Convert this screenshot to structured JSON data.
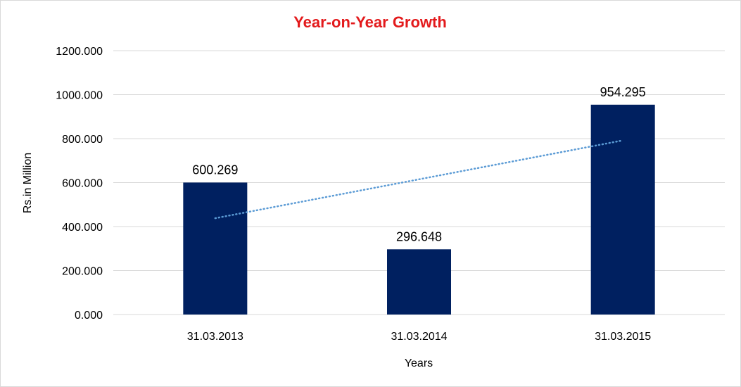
{
  "chart_data": {
    "type": "bar",
    "title": "Year-on-Year Growth",
    "xlabel": "Years",
    "ylabel": "Rs.in Million",
    "categories": [
      "31.03.2013",
      "31.03.2014",
      "31.03.2015"
    ],
    "series": [
      {
        "values": [
          600.269,
          296.648,
          954.295
        ]
      }
    ],
    "data_labels": [
      "600.269",
      "296.648",
      "954.295"
    ],
    "yticks": [
      0,
      200,
      400,
      600,
      800,
      1000,
      1200
    ],
    "ytick_labels": [
      "0.000",
      "200.000",
      "400.000",
      "600.000",
      "800.000",
      "1000.000",
      "1200.000"
    ],
    "ylim": [
      0,
      1200
    ],
    "grid": true,
    "legend": "none",
    "trendline": {
      "type": "linear",
      "style": "dotted",
      "start": 438,
      "end": 792
    },
    "colors": {
      "bar": "#002060",
      "title": "#e31a1c",
      "trendline": "#5b9bd5",
      "grid": "#d9d9d9"
    }
  }
}
